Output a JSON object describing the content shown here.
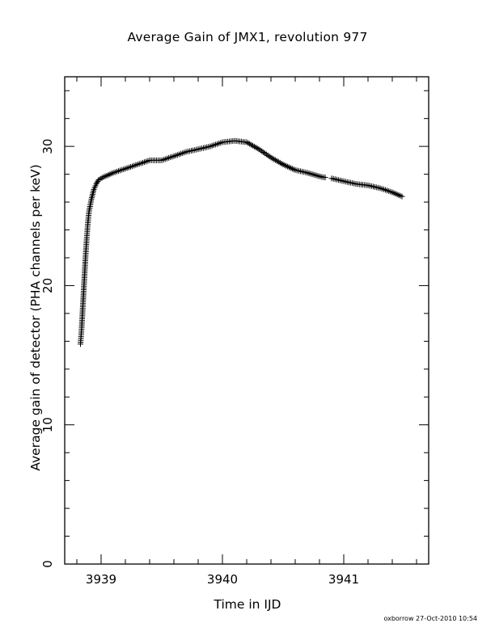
{
  "chart_data": {
    "type": "scatter",
    "marker": "plus",
    "title": "Average Gain of JMX1, revolution 977",
    "xlabel": "Time in IJD",
    "ylabel": "Average gain of detector (PHA channels per keV)",
    "xlim": [
      3938.7,
      3941.7
    ],
    "ylim": [
      0,
      35
    ],
    "x_ticks": [
      3939,
      3940,
      3941
    ],
    "y_ticks": [
      0,
      10,
      20,
      30
    ],
    "grid": false,
    "series": [
      {
        "curve": [
          [
            3938.83,
            15.8
          ],
          [
            3938.84,
            17.0
          ],
          [
            3938.85,
            18.6
          ],
          [
            3938.86,
            20.2
          ],
          [
            3938.87,
            21.8
          ],
          [
            3938.88,
            23.2
          ],
          [
            3938.89,
            24.4
          ],
          [
            3938.9,
            25.3
          ],
          [
            3938.92,
            26.2
          ],
          [
            3938.94,
            26.9
          ],
          [
            3938.96,
            27.3
          ],
          [
            3938.98,
            27.6
          ],
          [
            3939.02,
            27.8
          ],
          [
            3939.1,
            28.1
          ],
          [
            3939.2,
            28.4
          ],
          [
            3939.3,
            28.7
          ],
          [
            3939.4,
            29.0
          ],
          [
            3939.5,
            29.0
          ],
          [
            3939.6,
            29.3
          ],
          [
            3939.7,
            29.6
          ],
          [
            3939.8,
            29.8
          ],
          [
            3939.9,
            30.0
          ],
          [
            3940.0,
            30.3
          ],
          [
            3940.1,
            30.4
          ],
          [
            3940.2,
            30.3
          ],
          [
            3940.3,
            29.8
          ],
          [
            3940.4,
            29.2
          ],
          [
            3940.5,
            28.7
          ],
          [
            3940.6,
            28.3
          ],
          [
            3940.7,
            28.1
          ],
          [
            3940.82,
            27.8
          ],
          [
            3940.9,
            27.7
          ],
          [
            3941.0,
            27.5
          ],
          [
            3941.1,
            27.3
          ],
          [
            3941.2,
            27.2
          ],
          [
            3941.3,
            27.0
          ],
          [
            3941.4,
            26.7
          ],
          [
            3941.48,
            26.4
          ]
        ],
        "gaps": [
          [
            3940.85,
            3940.89
          ]
        ]
      }
    ]
  },
  "footer": "oxborrow 27-Oct-2010 10:54"
}
